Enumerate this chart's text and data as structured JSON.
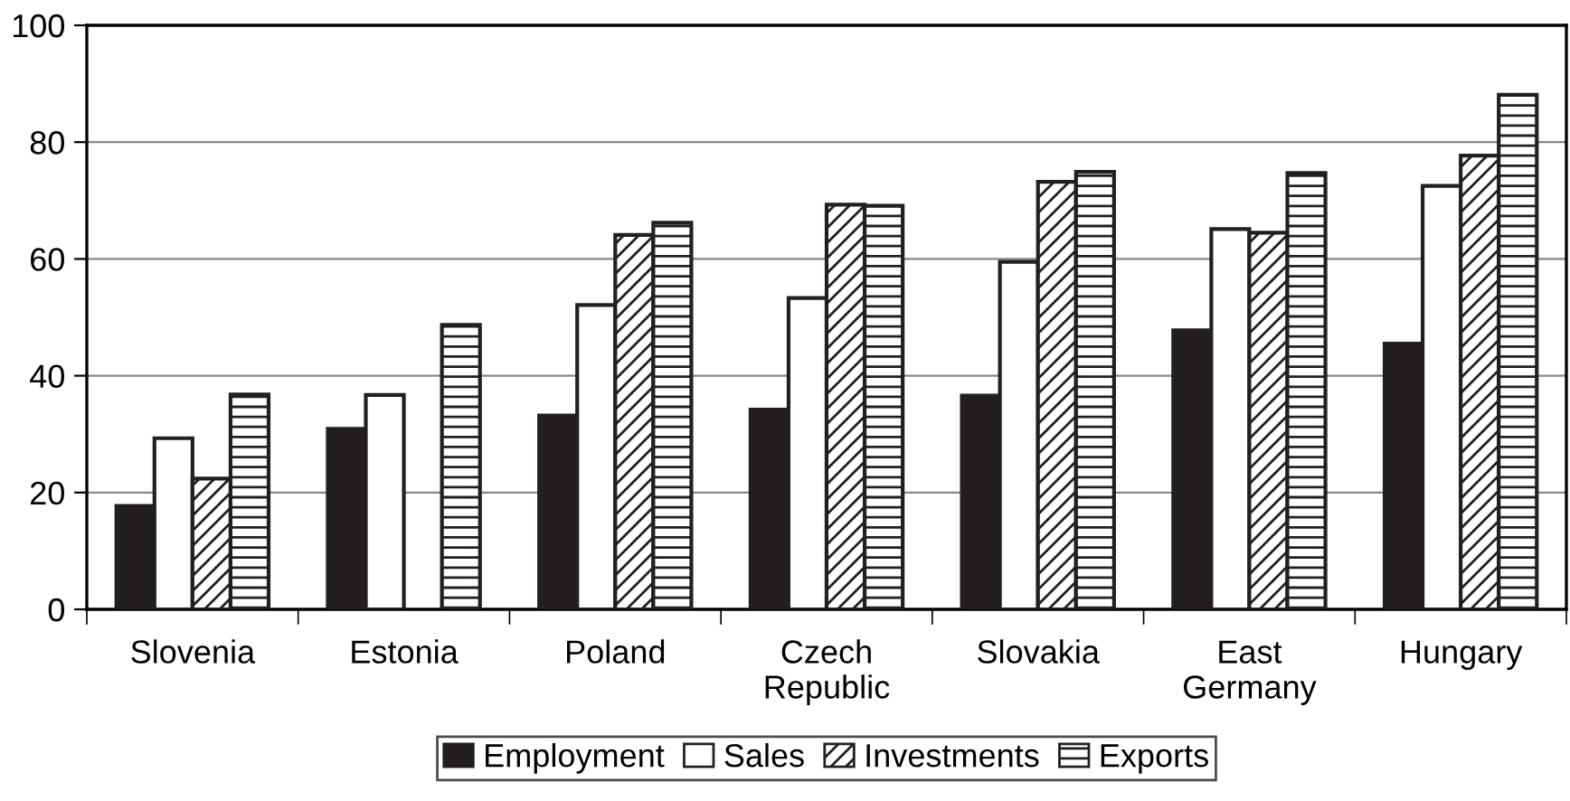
{
  "chart_data": {
    "type": "bar",
    "categories": [
      "Slovenia",
      "Estonia",
      "Poland",
      "Czech\nRepublic",
      "Slovakia",
      "East\nGermany",
      "Hungary"
    ],
    "series": [
      {
        "name": "Employment",
        "color": "#231f20",
        "values": [
          17.7,
          30.9,
          33.2,
          34.2,
          36.6,
          47.8,
          45.5
        ]
      },
      {
        "name": "Sales",
        "color": "#ffffff",
        "values": [
          29.3,
          36.7,
          52.1,
          53.3,
          59.5,
          65.1,
          72.5
        ]
      },
      {
        "name": "Investments",
        "color": "#231f20",
        "values": [
          22.4,
          null,
          64.1,
          69.3,
          73.2,
          64.5,
          77.7
        ]
      },
      {
        "name": "Exports",
        "color": "#231f20",
        "values": [
          36.8,
          48.7,
          66.2,
          69.1,
          74.9,
          74.7,
          88.1
        ]
      }
    ],
    "ylim": [
      0,
      100
    ],
    "yticks": [
      0,
      20,
      40,
      60,
      80,
      100
    ],
    "grid": "y",
    "legend": "bottom"
  }
}
